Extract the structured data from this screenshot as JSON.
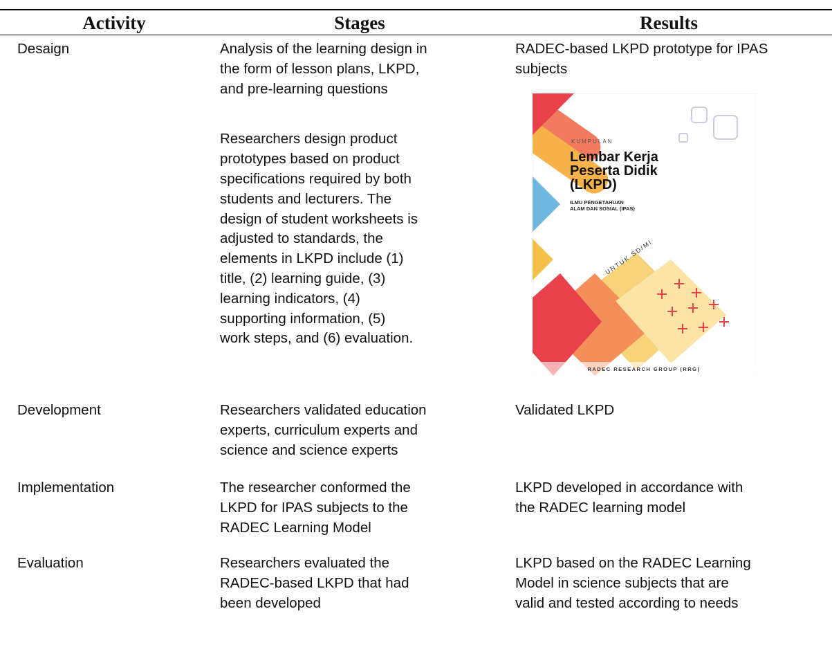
{
  "table": {
    "headers": [
      "Activity",
      "Stages",
      "Results"
    ],
    "rows": [
      {
        "activity": "Desaign",
        "stages": [
          [
            "Analysis of the learning design in",
            "the form of lesson plans, LKPD,",
            "and pre-learning questions"
          ],
          [
            "Researchers design product",
            "prototypes based on product",
            "specifications required by both",
            "students and lecturers. The",
            "design of student worksheets is",
            "adjusted to standards, the",
            "elements in LKPD include (1)",
            "title, (2) learning guide, (3)",
            "learning indicators, (4)",
            "supporting information, (5)",
            "work steps, and (6) evaluation."
          ]
        ],
        "results": [
          "RADEC-based LKPD prototype for IPAS",
          "subjects"
        ]
      },
      {
        "activity": "Development",
        "stages": [
          [
            "Researchers validated education",
            "experts, curriculum experts and",
            "science and science experts"
          ]
        ],
        "results": [
          "Validated LKPD"
        ]
      },
      {
        "activity": "Implementation",
        "stages": [
          [
            "The researcher conformed the",
            "LKPD for IPAS subjects to the",
            "RADEC Learning Model"
          ]
        ],
        "results": [
          "LKPD developed in accordance with",
          "the RADEC learning model"
        ]
      },
      {
        "activity": "Evaluation",
        "stages": [
          [
            "Researchers evaluated the",
            "RADEC-based LKPD that had",
            "been developed"
          ]
        ],
        "results": [
          "LKPD based on the RADEC Learning",
          "Model in science subjects that are",
          "valid and tested according to needs"
        ]
      }
    ]
  },
  "cover": {
    "kicker": "KUMPULAN",
    "title": [
      "Lembar Kerja",
      "Peserta Didik",
      "(LKPD)"
    ],
    "subtitle": [
      "ILMU PENGETAHUAN",
      "ALAM DAN SOSIAL (IPAS)"
    ],
    "audience": "UNTUK SD/MI",
    "publisher": "RADEC RESEARCH GROUP (RRG)"
  }
}
